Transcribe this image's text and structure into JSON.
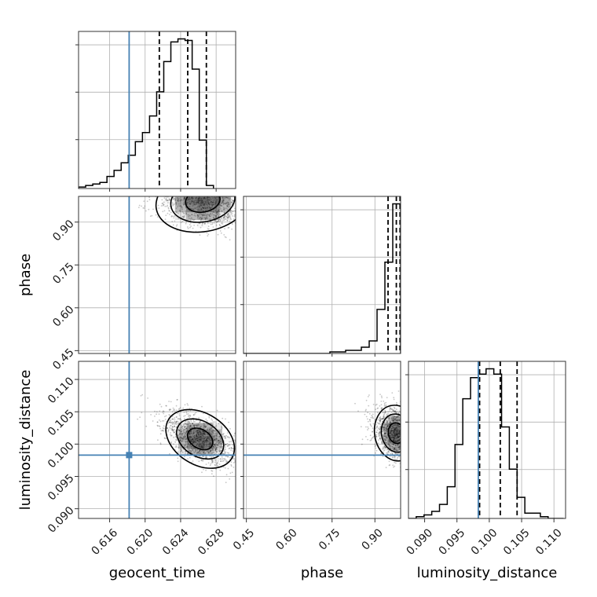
{
  "chart_data": {
    "type": "corner",
    "parameters": [
      "geocent_time",
      "phase",
      "luminosity_distance"
    ],
    "truths": {
      "geocent_time": 0.6182,
      "luminosity_distance": 0.0983
    },
    "diagonal": [
      {
        "param": "geocent_time",
        "xlim": [
          0.6125,
          0.6302
        ],
        "ticks": [
          "0.616",
          "0.620",
          "0.624",
          "0.628"
        ],
        "bin_edges_start": 0.6125,
        "bin_width": 0.0008,
        "counts": [
          1,
          2,
          3,
          4,
          8,
          12,
          17,
          22,
          31,
          37,
          48,
          64,
          84,
          97,
          99,
          98,
          79,
          32,
          2
        ],
        "quantiles": [
          0.6216,
          0.6248,
          0.6269
        ]
      },
      {
        "param": "phase",
        "xlim": [
          0.44,
          0.99
        ],
        "ticks": [
          "0.45",
          "0.60",
          "0.75",
          "0.90"
        ],
        "bin_edges_start": 0.44,
        "bin_width": 0.0275,
        "counts": [
          0,
          0,
          0,
          0,
          0,
          0,
          0,
          0,
          0,
          0,
          0,
          1,
          1,
          2,
          2,
          4,
          8,
          28,
          58,
          95
        ],
        "quantiles": [
          0.946,
          0.975,
          0.988
        ]
      },
      {
        "param": "luminosity_distance",
        "xlim": [
          0.0875,
          0.1118
        ],
        "ticks": [
          "0.090",
          "0.095",
          "0.100",
          "0.105",
          "0.110"
        ],
        "bin_edges_start": 0.0875,
        "bin_width": 0.0012,
        "counts": [
          0,
          1,
          2,
          4,
          8,
          18,
          42,
          68,
          80,
          82,
          85,
          82,
          52,
          28,
          12,
          3,
          3,
          1,
          0,
          0
        ],
        "quantiles": [
          0.0985,
          0.1017,
          0.1043
        ]
      }
    ],
    "ylims": {
      "phase": [
        0.44,
        0.99
      ],
      "luminosity_distance": [
        0.0885,
        0.1128
      ]
    },
    "yticks": {
      "phase": [
        "0.45",
        "0.60",
        "0.75",
        "0.90"
      ],
      "luminosity_distance": [
        "0.090",
        "0.095",
        "0.100",
        "0.105",
        "0.110"
      ]
    },
    "pairs": [
      {
        "x": "geocent_time",
        "y": "phase",
        "center": [
          0.6265,
          0.975
        ],
        "spread": [
          0.0028,
          0.06
        ]
      },
      {
        "x": "geocent_time",
        "y": "luminosity_distance",
        "center": [
          0.6262,
          0.1008
        ],
        "spread": [
          0.0022,
          0.0022
        ]
      },
      {
        "x": "phase",
        "y": "luminosity_distance",
        "center": [
          0.975,
          0.1017
        ],
        "spread": [
          0.04,
          0.0024
        ]
      }
    ],
    "xlabel": [
      "geocent_time",
      "phase",
      "luminosity_distance"
    ],
    "ylabel": [
      "",
      "phase",
      "luminosity_distance"
    ],
    "grid": true,
    "truth_color": "#4682b4"
  }
}
